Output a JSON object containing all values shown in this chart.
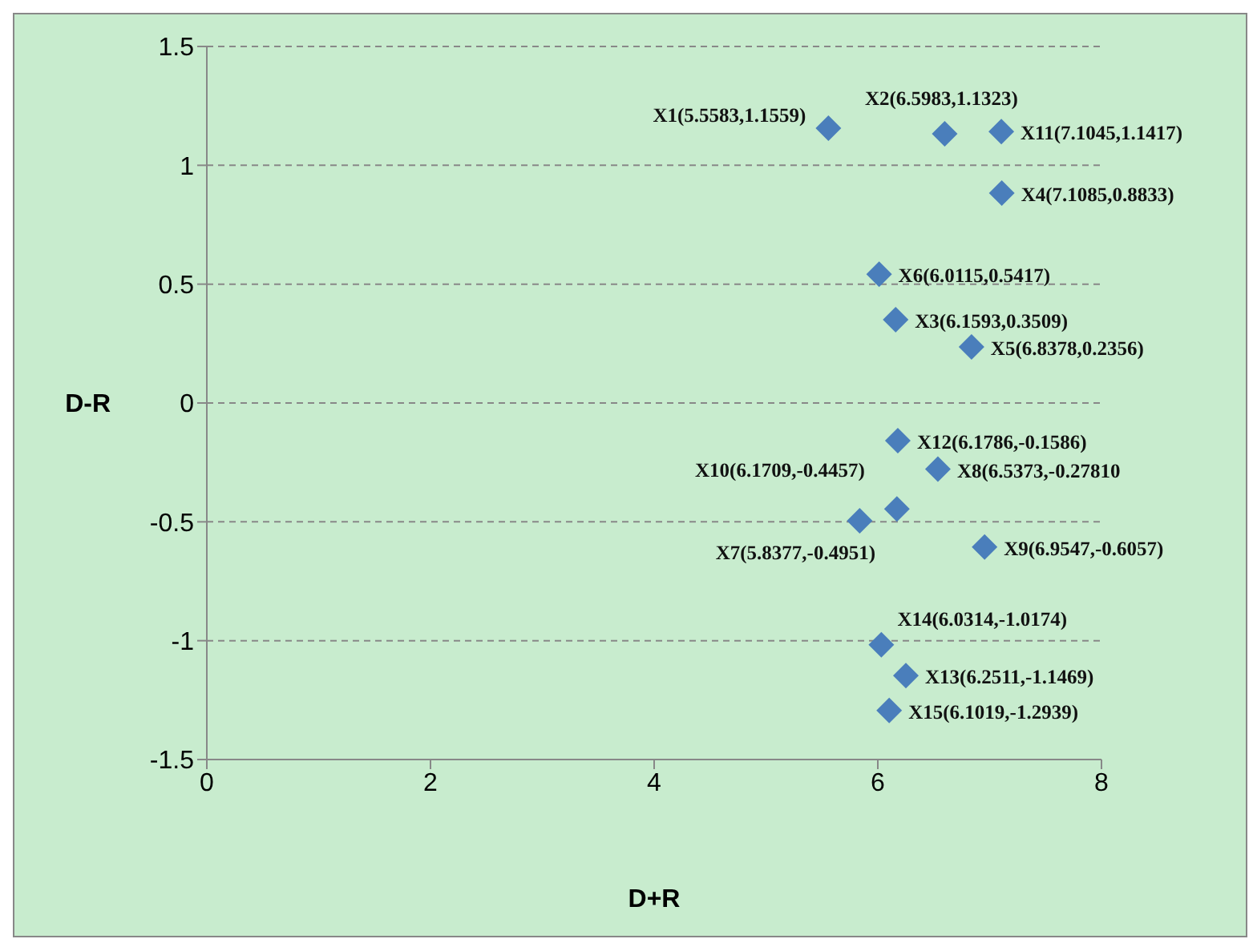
{
  "chart_data": {
    "type": "scatter",
    "xlabel": "D+R",
    "ylabel": "D-R",
    "marker": "diamond",
    "grid": "y",
    "line_style": "dashed",
    "xlim": [
      0,
      8
    ],
    "xticks": [
      0,
      2,
      4,
      6,
      8
    ],
    "ylim": [
      -1.5,
      1.5
    ],
    "yticks": [
      -1.5,
      -1,
      -0.5,
      0,
      0.5,
      1,
      1.5
    ],
    "series": [
      {
        "color": "#4a7ebb",
        "x": [
          5.5583,
          6.5983,
          6.1593,
          7.1085,
          6.8378,
          6.0115,
          5.8377,
          6.5373,
          6.9547,
          6.1709,
          7.1045,
          6.1786,
          6.2511,
          6.0314,
          6.1019
        ],
        "values": [
          1.1559,
          1.1323,
          0.3509,
          0.8833,
          0.2356,
          0.5417,
          -0.4951,
          -0.2781,
          -0.6057,
          -0.4457,
          1.1417,
          -0.1586,
          -1.1469,
          -1.0174,
          -1.2939
        ]
      }
    ],
    "annotations": [
      {
        "text": "X1(5.5583,1.1559)",
        "x": 5.5583,
        "y": 1.1559
      },
      {
        "text": "X2(6.5983,1.1323)",
        "x": 6.5983,
        "y": 1.1323
      },
      {
        "text": "X3(6.1593,0.3509)",
        "x": 6.1593,
        "y": 0.3509
      },
      {
        "text": "X4(7.1085,0.8833)",
        "x": 7.1085,
        "y": 0.8833
      },
      {
        "text": "X5(6.8378,0.2356)",
        "x": 6.8378,
        "y": 0.2356
      },
      {
        "text": "X6(6.0115,0.5417)",
        "x": 6.0115,
        "y": 0.5417
      },
      {
        "text": "X7(5.8377,-0.4951)",
        "x": 5.8377,
        "y": -0.4951
      },
      {
        "text": "X8(6.5373,-0.27810",
        "x": 6.5373,
        "y": -0.2781
      },
      {
        "text": "X9(6.9547,-0.6057)",
        "x": 6.9547,
        "y": -0.6057
      },
      {
        "text": "X10(6.1709,-0.4457)",
        "x": 6.1709,
        "y": -0.4457
      },
      {
        "text": "X11(7.1045,1.1417)",
        "x": 7.1045,
        "y": 1.1417
      },
      {
        "text": "X12(6.1786,-0.1586)",
        "x": 6.1786,
        "y": -0.1586
      },
      {
        "text": "X13(6.2511,-1.1469)",
        "x": 6.2511,
        "y": -1.1469
      },
      {
        "text": "X14(6.0314,-1.0174)",
        "x": 6.0314,
        "y": -1.0174
      },
      {
        "text": "X15(6.1019,-1.2939)",
        "x": 6.1019,
        "y": -1.2939
      }
    ]
  }
}
